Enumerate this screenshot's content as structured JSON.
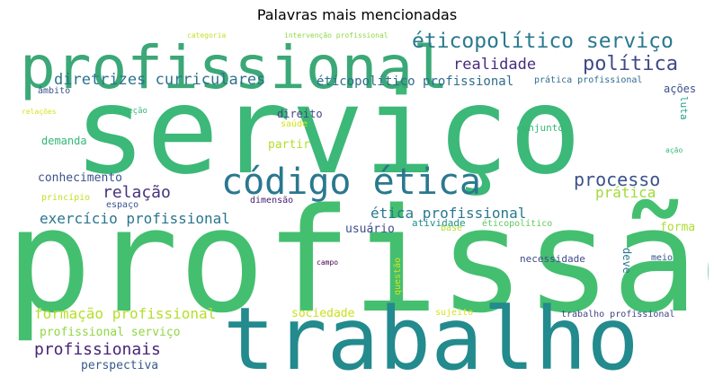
{
  "title": "Palavras mais mencionadas",
  "words": [
    {
      "text": "serviço",
      "color": "#3cb878"
    },
    {
      "text": "profissão",
      "color": "#44bf70"
    },
    {
      "text": "profissional",
      "color": "#3ba877"
    },
    {
      "text": "trabalho",
      "color": "#238a8d"
    },
    {
      "text": "código ética",
      "color": "#2a788e"
    },
    {
      "text": "éticopolítico serviço",
      "color": "#29798e"
    },
    {
      "text": "política",
      "color": "#3e4a89"
    },
    {
      "text": "realidade",
      "color": "#472d7b"
    },
    {
      "text": "diretrizes curriculares",
      "color": "#2c728e"
    },
    {
      "text": "éticopolítico profissional",
      "color": "#2f6c8e"
    },
    {
      "text": "prática profissional",
      "color": "#2f6c8e"
    },
    {
      "text": "ações",
      "color": "#3b518b"
    },
    {
      "text": "luta",
      "color": "#1f9e89"
    },
    {
      "text": "âmbito",
      "color": "#3b528b"
    },
    {
      "text": "relações",
      "color": "#d8e219"
    },
    {
      "text": "direção",
      "color": "#35b779"
    },
    {
      "text": "direito",
      "color": "#404688"
    },
    {
      "text": "saúde",
      "color": "#d5e21a"
    },
    {
      "text": "conjunto",
      "color": "#35b779"
    },
    {
      "text": "demanda",
      "color": "#35b779"
    },
    {
      "text": "partir",
      "color": "#b5de2b"
    },
    {
      "text": "ação",
      "color": "#35b779"
    },
    {
      "text": "conhecimento",
      "color": "#3b528b"
    },
    {
      "text": "processo",
      "color": "#3b528b"
    },
    {
      "text": "relação",
      "color": "#46327e"
    },
    {
      "text": "prática",
      "color": "#a0da39"
    },
    {
      "text": "princípio",
      "color": "#c2df23"
    },
    {
      "text": "espaço",
      "color": "#3b528b"
    },
    {
      "text": "dimensão",
      "color": "#482173"
    },
    {
      "text": "exercício profissional",
      "color": "#2b758e"
    },
    {
      "text": "ética profissional",
      "color": "#2a788e"
    },
    {
      "text": "forma",
      "color": "#addc30"
    },
    {
      "text": "usuário",
      "color": "#3e4c8a"
    },
    {
      "text": "atividade",
      "color": "#21918c"
    },
    {
      "text": "base",
      "color": "#b5de2b"
    },
    {
      "text": "éticopolítico",
      "color": "#5ec962"
    },
    {
      "text": "deve",
      "color": "#2a788e"
    },
    {
      "text": "campo",
      "color": "#440154"
    },
    {
      "text": "questão",
      "color": "#d2e21b"
    },
    {
      "text": "necessidade",
      "color": "#3e4a89"
    },
    {
      "text": "meio",
      "color": "#3b528b"
    },
    {
      "text": "formação profissional",
      "color": "#b5de2b"
    },
    {
      "text": "sociedade",
      "color": "#c8e020"
    },
    {
      "text": "sujeito",
      "color": "#d8e219"
    },
    {
      "text": "trabalho profissional",
      "color": "#414487"
    },
    {
      "text": "profissional serviço",
      "color": "#8fd744"
    },
    {
      "text": "profissionais",
      "color": "#482475"
    },
    {
      "text": "perspectiva",
      "color": "#38598c"
    },
    {
      "text": "categoria",
      "color": "#c2df23"
    },
    {
      "text": "intervenção profissional",
      "color": "#8fd744"
    }
  ]
}
